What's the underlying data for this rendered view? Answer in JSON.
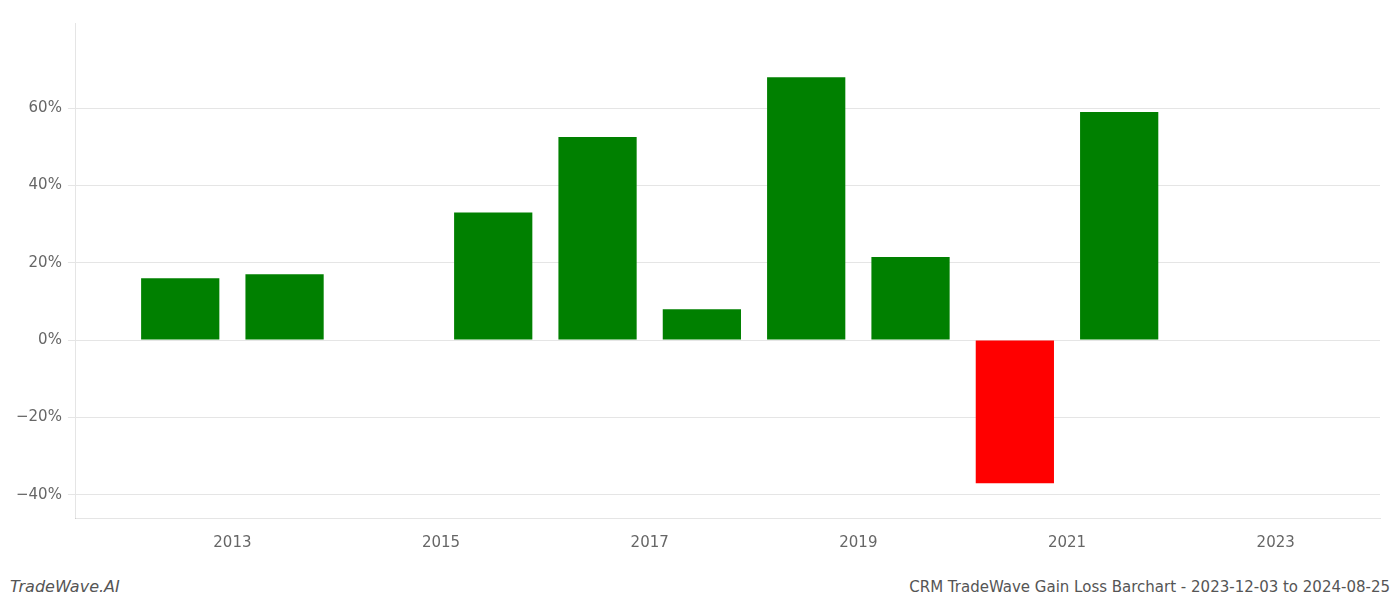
{
  "chart_data": {
    "type": "bar",
    "x": [
      2012.5,
      2013.5,
      2015.5,
      2016.5,
      2017.5,
      2018.5,
      2019.5,
      2020.5,
      2021.5
    ],
    "values": [
      16.0,
      17.0,
      33.0,
      52.5,
      8.0,
      68.0,
      21.5,
      -37.0,
      59.0
    ],
    "colors": [
      "#008000",
      "#008000",
      "#008000",
      "#008000",
      "#008000",
      "#008000",
      "#008000",
      "#ff0000",
      "#008000"
    ],
    "xlim": [
      2011.5,
      2024.0
    ],
    "xticks": [
      2013,
      2015,
      2017,
      2019,
      2021,
      2023
    ],
    "ylim": [
      -46,
      82
    ],
    "yticks": [
      {
        "value": -40,
        "label": "−40%"
      },
      {
        "value": -20,
        "label": "−20%"
      },
      {
        "value": 0,
        "label": "0%"
      },
      {
        "value": 20,
        "label": "20%"
      },
      {
        "value": 40,
        "label": "40%"
      },
      {
        "value": 60,
        "label": "60%"
      }
    ],
    "grid": true,
    "annotations": [
      "TradeWave.AI",
      "CRM TradeWave Gain Loss Barchart - 2023-12-03 to 2024-08-25"
    ]
  }
}
